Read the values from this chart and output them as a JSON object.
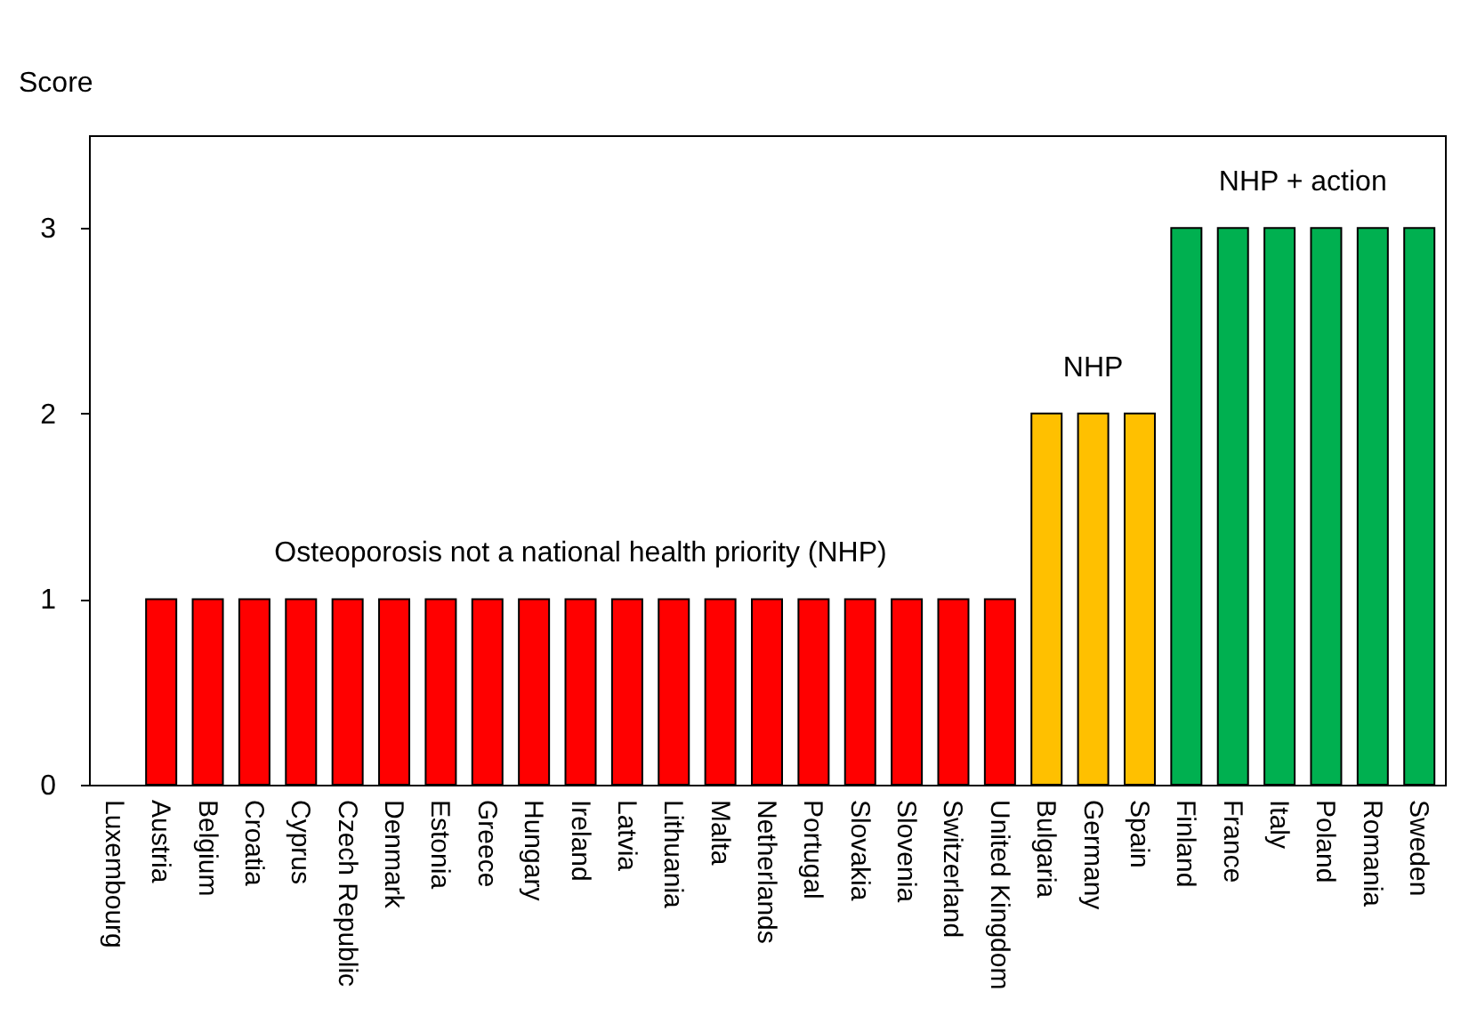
{
  "chart_data": {
    "type": "bar",
    "ylabel": "Score",
    "categories": [
      "Luxembourg",
      "Austria",
      "Belgium",
      "Croatia",
      "Cyprus",
      "Czech Republic",
      "Denmark",
      "Estonia",
      "Greece",
      "Hungary",
      "Ireland",
      "Latvia",
      "Lithuania",
      "Malta",
      "Netherlands",
      "Portugal",
      "Slovakia",
      "Slovenia",
      "Switzerland",
      "United Kingdom",
      "Bulgaria",
      "Germany",
      "Spain",
      "Finland",
      "France",
      "Italy",
      "Poland",
      "Romania",
      "Sweden"
    ],
    "values": [
      null,
      1,
      1,
      1,
      1,
      1,
      1,
      1,
      1,
      1,
      1,
      1,
      1,
      1,
      1,
      1,
      1,
      1,
      1,
      1,
      2,
      2,
      2,
      3,
      3,
      3,
      3,
      3,
      3
    ],
    "colors": [
      "#ff0000",
      "#ff0000",
      "#ff0000",
      "#ff0000",
      "#ff0000",
      "#ff0000",
      "#ff0000",
      "#ff0000",
      "#ff0000",
      "#ff0000",
      "#ff0000",
      "#ff0000",
      "#ff0000",
      "#ff0000",
      "#ff0000",
      "#ff0000",
      "#ff0000",
      "#ff0000",
      "#ff0000",
      "#ff0000",
      "#ffc000",
      "#ffc000",
      "#ffc000",
      "#00b050",
      "#00b050",
      "#00b050",
      "#00b050",
      "#00b050",
      "#00b050"
    ],
    "ylim": [
      0,
      3.5
    ],
    "yticks": [
      0,
      1,
      2,
      3
    ],
    "grid": false,
    "annotations": [
      "Osteoporosis not a national health priority (NHP)",
      "NHP",
      "NHP + action"
    ]
  }
}
